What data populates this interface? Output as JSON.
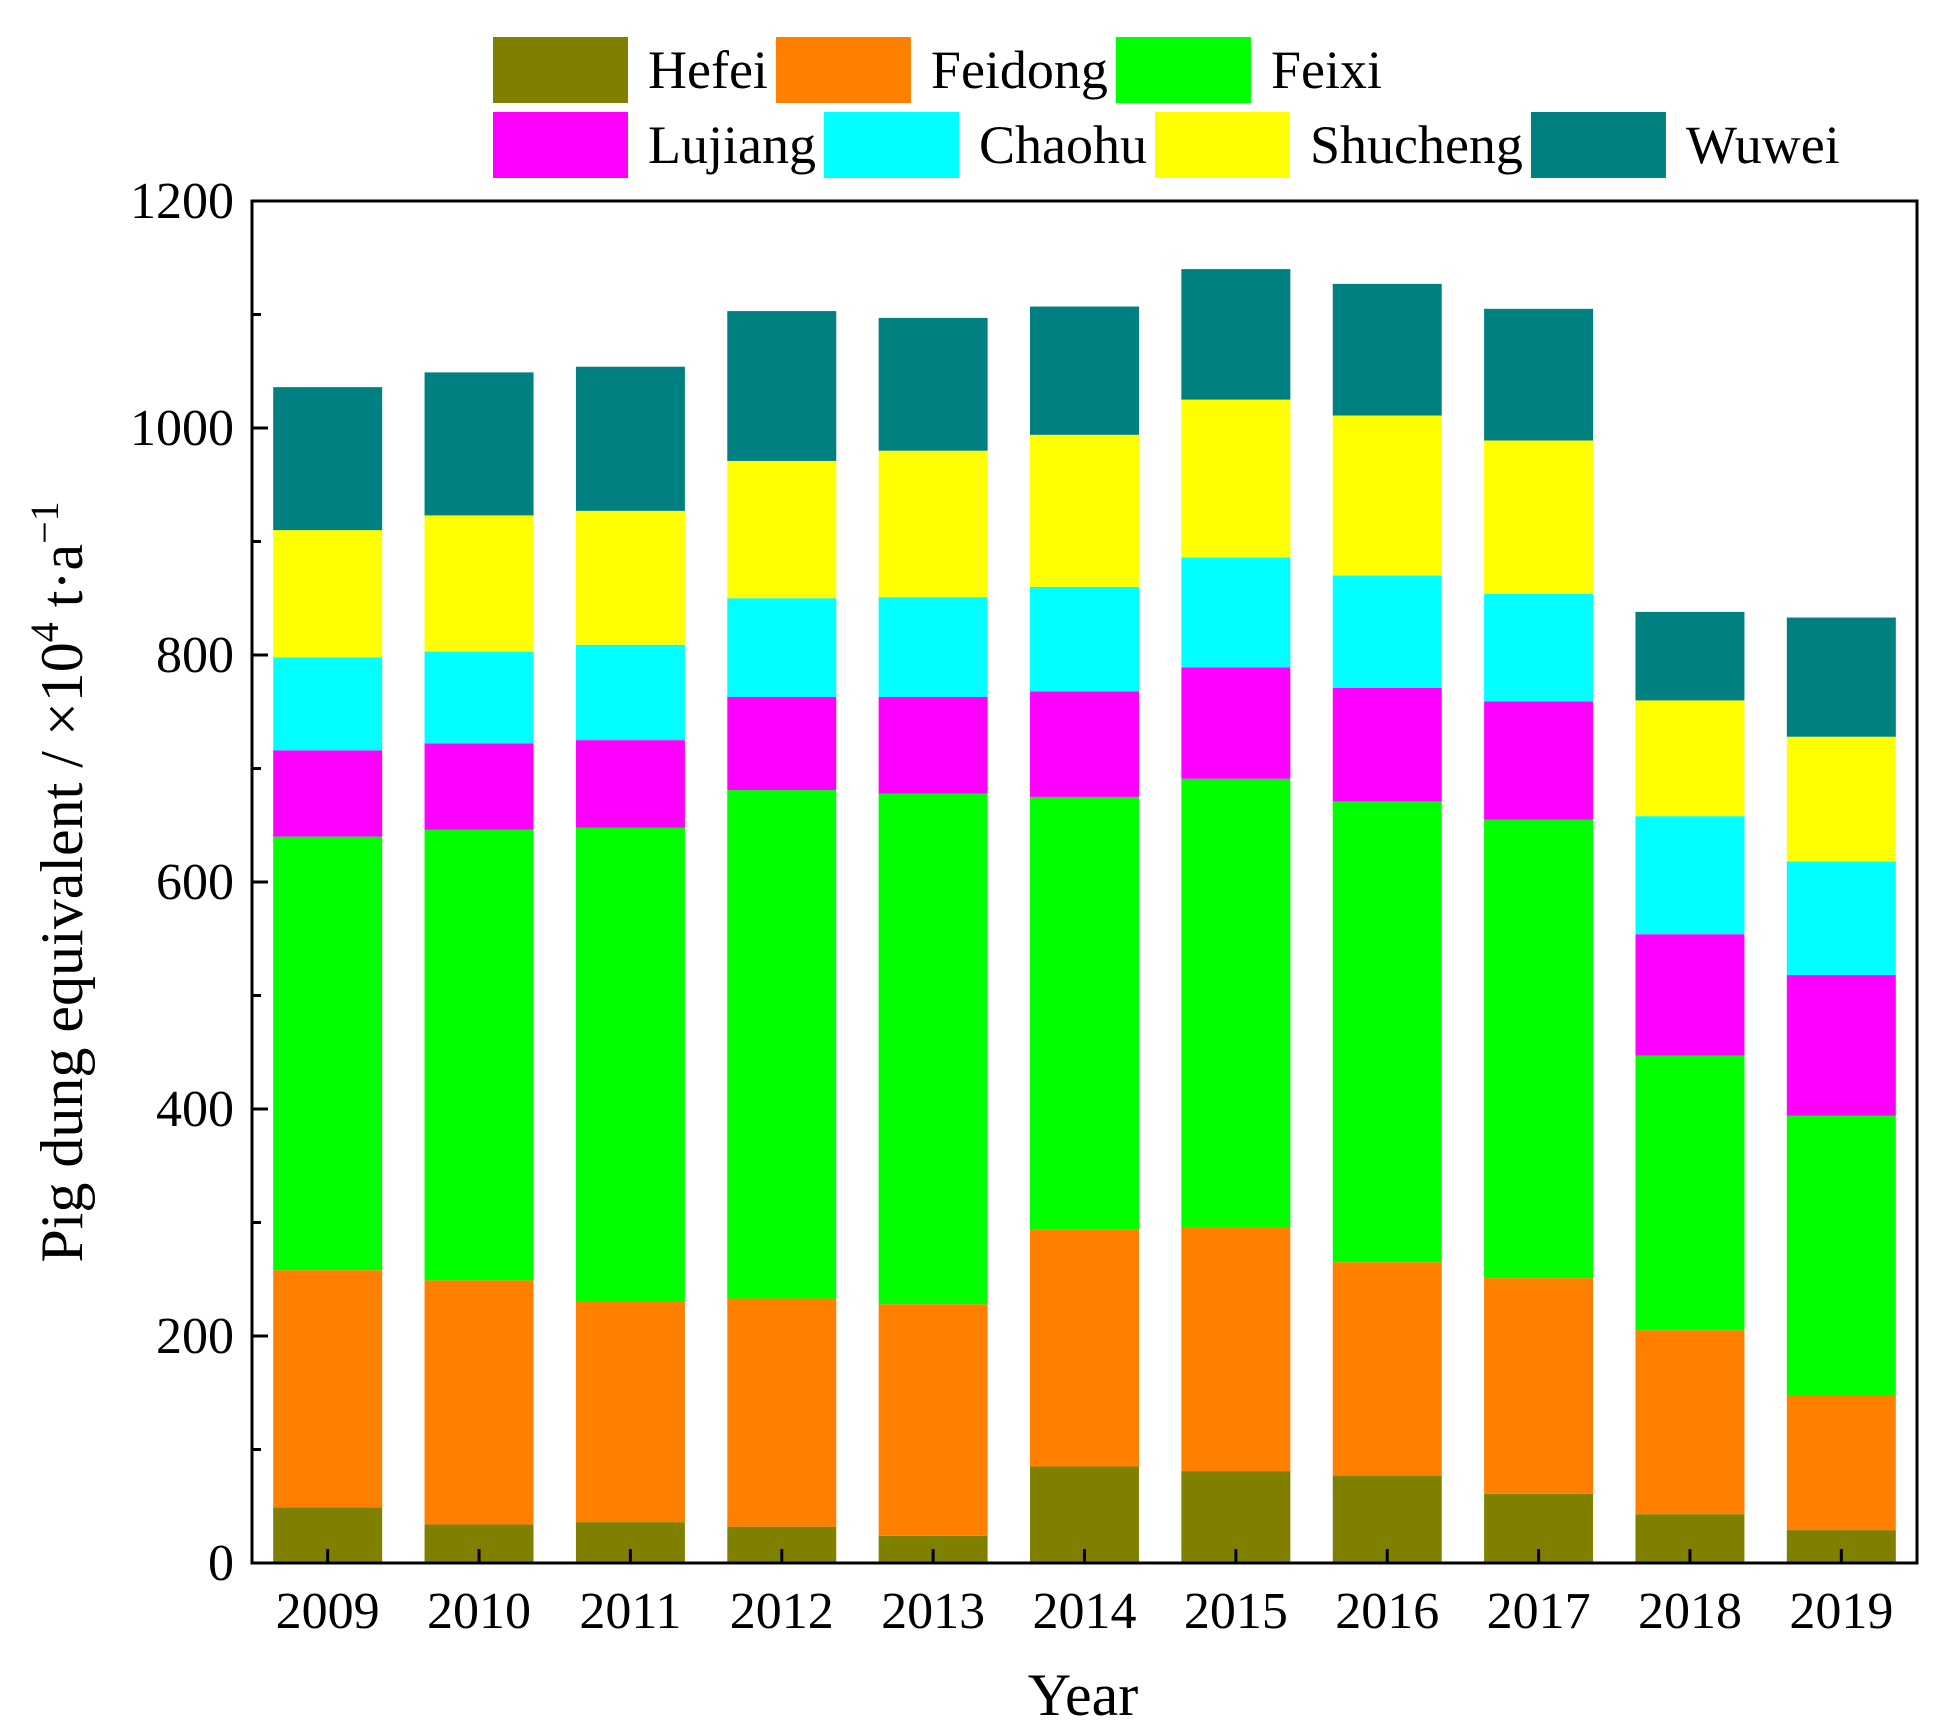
{
  "chart_data": {
    "type": "bar",
    "stacked": true,
    "title": "",
    "xlabel": "Year",
    "ylabel_main": "Pig dung equivalent / ×10",
    "ylabel_exp": "4",
    "ylabel_unit": " t·a",
    "ylabel_unit_exp": "−1",
    "ylim": [
      0,
      1200
    ],
    "yticks": [
      "0",
      "200",
      "400",
      "600",
      "800",
      "1000",
      "1200"
    ],
    "categories": [
      "2009",
      "2010",
      "2011",
      "2012",
      "2013",
      "2014",
      "2015",
      "2016",
      "2017",
      "2018",
      "2019"
    ],
    "legend_position": "top",
    "series": [
      {
        "name": "Hefei",
        "color": "#808000",
        "values": [
          49,
          34,
          36,
          32,
          24,
          85,
          81,
          77,
          61,
          43,
          29
        ]
      },
      {
        "name": "Feidong",
        "color": "#FF8000",
        "values": [
          209,
          215,
          194,
          201,
          204,
          209,
          215,
          188,
          190,
          162,
          119
        ]
      },
      {
        "name": "Feixi",
        "color": "#00FF00",
        "values": [
          382,
          397,
          418,
          448,
          450,
          381,
          395,
          406,
          404,
          242,
          246
        ]
      },
      {
        "name": "Lujiang",
        "color": "#FF00FF",
        "values": [
          76,
          76,
          77,
          82,
          85,
          93,
          98,
          100,
          104,
          107,
          124
        ]
      },
      {
        "name": "Chaohu",
        "color": "#00FFFF",
        "values": [
          82,
          81,
          84,
          87,
          88,
          92,
          97,
          99,
          95,
          104,
          100
        ]
      },
      {
        "name": "Shucheng",
        "color": "#FFFF00",
        "values": [
          112,
          120,
          118,
          121,
          129,
          134,
          139,
          141,
          135,
          102,
          110
        ]
      },
      {
        "name": "Wuwei",
        "color": "#008080",
        "values": [
          126,
          126,
          127,
          132,
          117,
          113,
          115,
          116,
          116,
          78,
          105
        ]
      }
    ]
  }
}
